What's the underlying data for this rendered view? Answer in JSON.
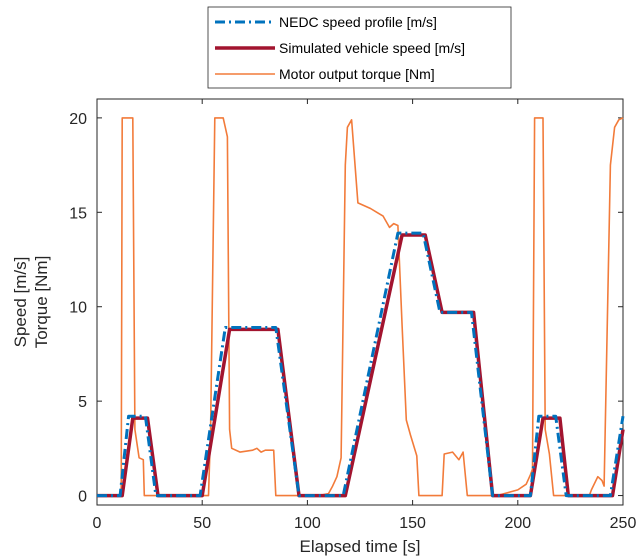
{
  "chart_data": {
    "type": "line",
    "title": "",
    "xlabel": "Elapsed time [s]",
    "ylabel": [
      "Speed [m/s]",
      "Torque [Nm]"
    ],
    "xlim": [
      0,
      250
    ],
    "ylim": [
      -0.5,
      21
    ],
    "xticks": [
      0,
      50,
      100,
      150,
      200,
      250
    ],
    "yticks": [
      0,
      5,
      10,
      15,
      20
    ],
    "grid": false,
    "legend_position": "top-center-outside",
    "series": [
      {
        "name": "NEDC speed profile [m/s]",
        "color": "#0072BD",
        "style": "dash-dot",
        "points": [
          [
            0,
            0
          ],
          [
            11,
            0
          ],
          [
            15,
            4.2
          ],
          [
            23,
            4.2
          ],
          [
            28,
            0
          ],
          [
            49,
            0
          ],
          [
            61,
            8.9
          ],
          [
            85,
            8.9
          ],
          [
            96,
            0
          ],
          [
            117,
            0
          ],
          [
            143,
            13.9
          ],
          [
            155,
            13.9
          ],
          [
            163,
            9.7
          ],
          [
            178,
            9.7
          ],
          [
            188,
            0
          ],
          [
            206,
            0
          ],
          [
            210,
            4.2
          ],
          [
            218,
            4.2
          ],
          [
            223,
            0
          ],
          [
            244,
            0
          ],
          [
            250,
            4.2
          ]
        ]
      },
      {
        "name": "Simulated vehicle speed [m/s]",
        "color": "#A2142F",
        "style": "solid",
        "points": [
          [
            0,
            0
          ],
          [
            12,
            0
          ],
          [
            17,
            4.1
          ],
          [
            24,
            4.1
          ],
          [
            29,
            0
          ],
          [
            50,
            0
          ],
          [
            63,
            8.8
          ],
          [
            86,
            8.8
          ],
          [
            96,
            0
          ],
          [
            118,
            0
          ],
          [
            145,
            13.8
          ],
          [
            156,
            13.8
          ],
          [
            164,
            9.7
          ],
          [
            179,
            9.7
          ],
          [
            188,
            0
          ],
          [
            206,
            0
          ],
          [
            212,
            4.1
          ],
          [
            220,
            4.1
          ],
          [
            224,
            0
          ],
          [
            245,
            0
          ],
          [
            250,
            3.5
          ]
        ]
      },
      {
        "name": "Motor output torque [Nm]",
        "color": "#F27B3A",
        "style": "solid",
        "points": [
          [
            0,
            0
          ],
          [
            11.5,
            0
          ],
          [
            12,
            20
          ],
          [
            17,
            20
          ],
          [
            18,
            3.5
          ],
          [
            20,
            2.0
          ],
          [
            22,
            1.9
          ],
          [
            22.5,
            0
          ],
          [
            53,
            0
          ],
          [
            54,
            3.5
          ],
          [
            56,
            20
          ],
          [
            60,
            20
          ],
          [
            62,
            19
          ],
          [
            63,
            3.5
          ],
          [
            64,
            2.5
          ],
          [
            68,
            2.3
          ],
          [
            74,
            2.4
          ],
          [
            76,
            2.5
          ],
          [
            78,
            2.3
          ],
          [
            80,
            2.4
          ],
          [
            84,
            2.4
          ],
          [
            85,
            0
          ],
          [
            105,
            0
          ],
          [
            110,
            0.1
          ],
          [
            112,
            0.5
          ],
          [
            114,
            1
          ],
          [
            116,
            2
          ],
          [
            118,
            17.5
          ],
          [
            119,
            19.5
          ],
          [
            121,
            19.9
          ],
          [
            124,
            15.5
          ],
          [
            130,
            15.2
          ],
          [
            133,
            15.0
          ],
          [
            136,
            14.8
          ],
          [
            139,
            14.2
          ],
          [
            141,
            14.4
          ],
          [
            143,
            14.3
          ],
          [
            145,
            9
          ],
          [
            147,
            4
          ],
          [
            149,
            3.2
          ],
          [
            152,
            2.1
          ],
          [
            153,
            0
          ],
          [
            164,
            0
          ],
          [
            165,
            2.2
          ],
          [
            169,
            2.3
          ],
          [
            172,
            1.9
          ],
          [
            174,
            2.3
          ],
          [
            176,
            0
          ],
          [
            190,
            0
          ],
          [
            200,
            0.3
          ],
          [
            204,
            0.6
          ],
          [
            206,
            1.1
          ],
          [
            207,
            1.4
          ],
          [
            208,
            20
          ],
          [
            212,
            20
          ],
          [
            213,
            3.5
          ],
          [
            215,
            2.2
          ],
          [
            217,
            0
          ],
          [
            234,
            0
          ],
          [
            235,
            0.3
          ],
          [
            238,
            1
          ],
          [
            240,
            0.8
          ],
          [
            241,
            0.5
          ],
          [
            244,
            17.5
          ],
          [
            246,
            19.5
          ],
          [
            248,
            19.9
          ],
          [
            250,
            20
          ]
        ]
      }
    ]
  }
}
